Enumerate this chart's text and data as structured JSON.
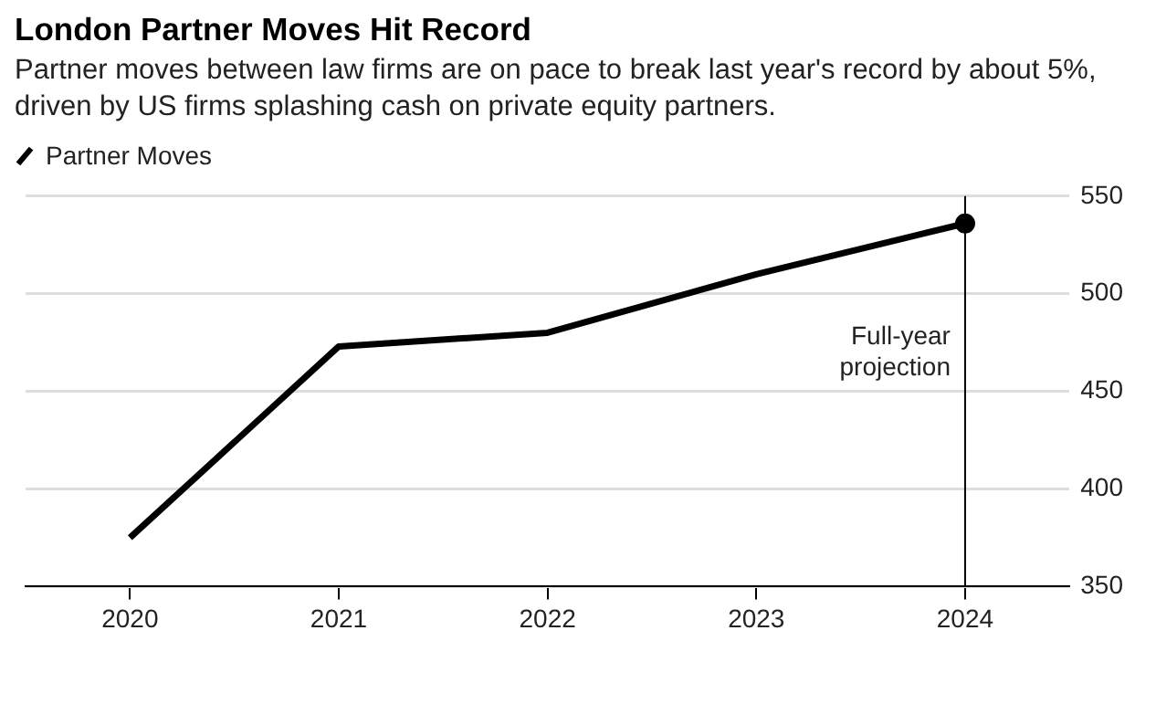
{
  "chart_data": {
    "type": "line",
    "title": "London Partner Moves Hit Record",
    "subtitle": "Partner moves between law firms are on pace to break last year's record by about 5%, driven by US firms splashing cash on private equity partners.",
    "categories": [
      "2020",
      "2021",
      "2022",
      "2023",
      "2024"
    ],
    "series": [
      {
        "name": "Partner Moves",
        "color": "#000000",
        "values": [
          375,
          473,
          480,
          510,
          536
        ]
      },
      {
        "type": "scatter",
        "color": "#000000",
        "values": [
          null,
          null,
          null,
          null,
          536
        ],
        "marker": "circle"
      }
    ],
    "ylim": [
      350,
      550
    ],
    "yticks": [
      350,
      400,
      450,
      500,
      550
    ],
    "grid": "y",
    "legend": "top left",
    "marker": "none",
    "line_style": "solid",
    "ref_lines": [
      {
        "axis": "x",
        "value": "2024",
        "label": "Full-year projection",
        "color": "#000000"
      }
    ]
  }
}
